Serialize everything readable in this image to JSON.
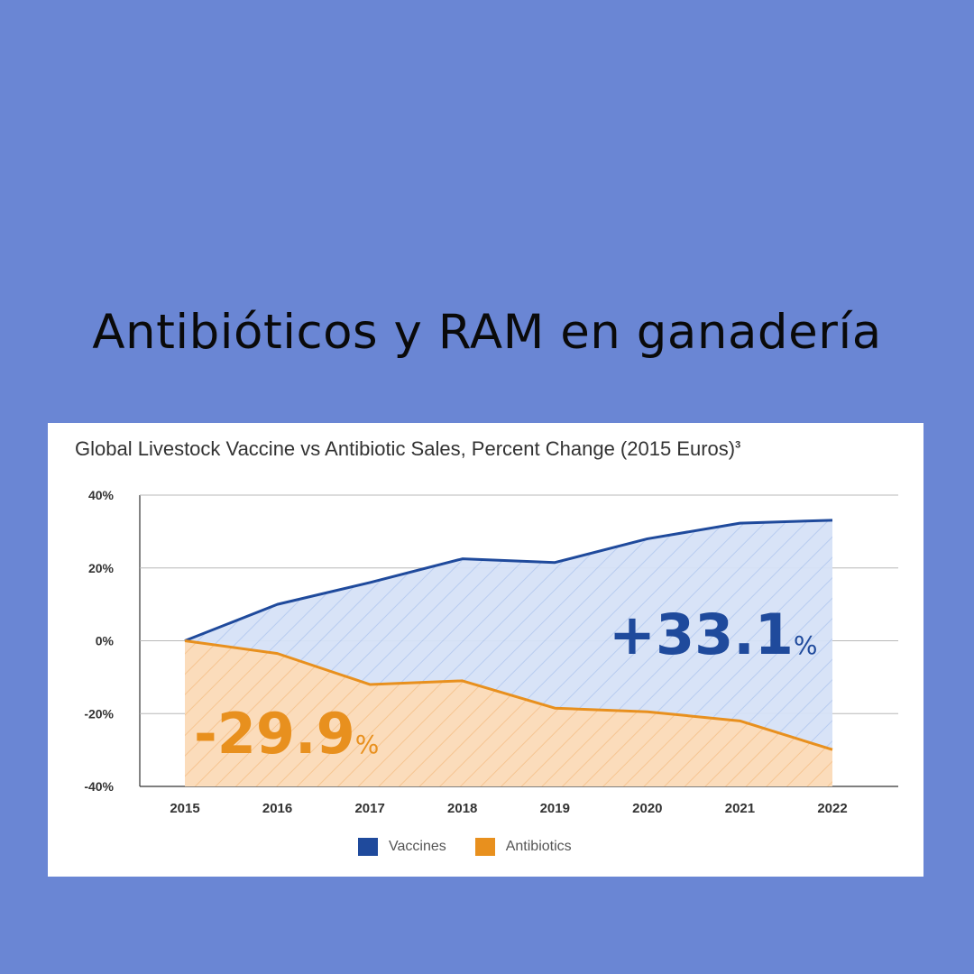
{
  "page": {
    "heading": "Antibióticos y RAM en ganadería",
    "background_color": "#6a86d4"
  },
  "chart_data": {
    "type": "area",
    "title": "Global Livestock Vaccine vs Antibiotic Sales, Percent Change (2015 Euros)",
    "title_footnote": "3",
    "categories": [
      "2015",
      "2016",
      "2017",
      "2018",
      "2019",
      "2020",
      "2021",
      "2022"
    ],
    "series": [
      {
        "name": "Vaccines",
        "color": "#1f4a9c",
        "fill": "#d6e2f7",
        "values": [
          0,
          10,
          16,
          22.5,
          21.5,
          28,
          32.3,
          33.1
        ]
      },
      {
        "name": "Antibiotics",
        "color": "#e8901e",
        "fill": "#fbdcbb",
        "values": [
          0,
          -3.5,
          -12,
          -11,
          -18.5,
          -19.5,
          -22,
          -29.9
        ]
      }
    ],
    "yticks": [
      "40%",
      "20%",
      "0%",
      "-20%",
      "-40%"
    ],
    "ylim": [
      -40,
      40
    ],
    "grid": true,
    "legend_position": "bottom",
    "annotations": [
      {
        "series": "Vaccines",
        "value": "+33.1",
        "unit": "%"
      },
      {
        "series": "Antibiotics",
        "value": "-29.9",
        "unit": "%"
      }
    ]
  }
}
